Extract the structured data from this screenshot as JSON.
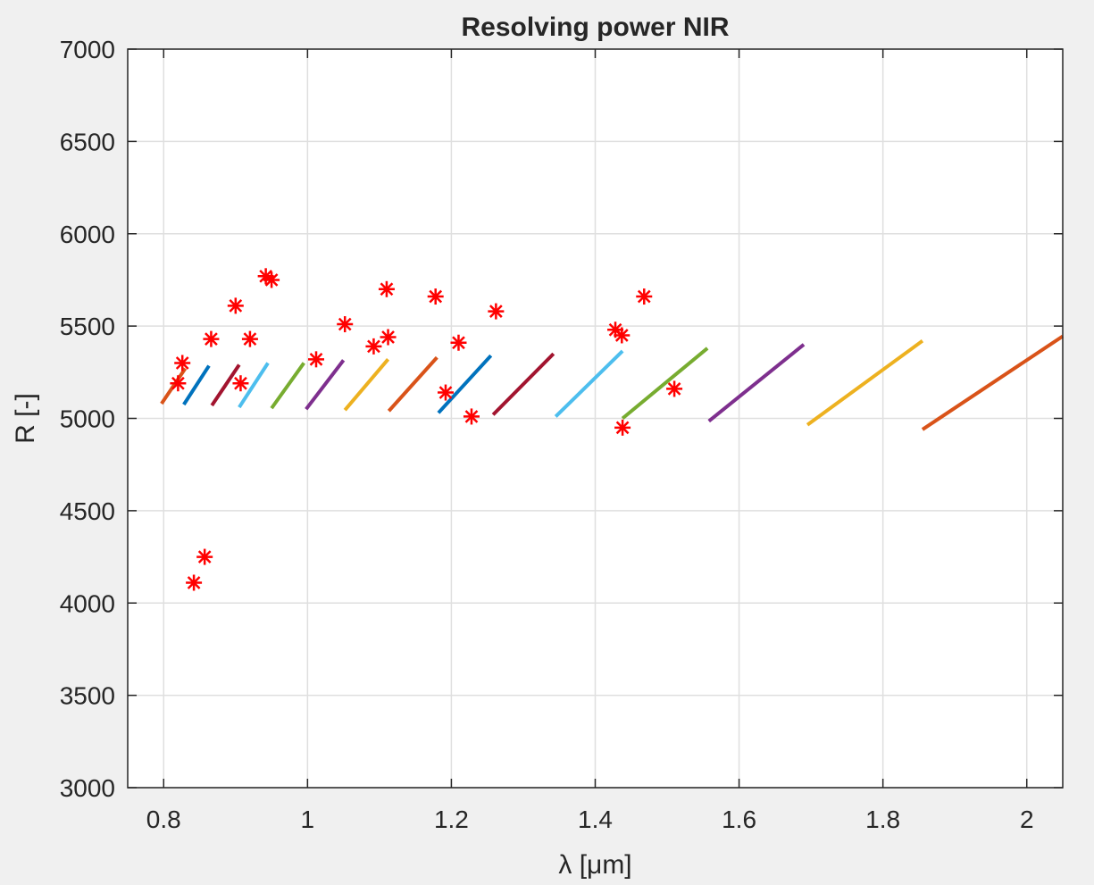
{
  "chart_data": {
    "type": "line",
    "title": "Resolving power NIR",
    "xlabel": "λ [μm]",
    "ylabel": "R [-]",
    "xlim": [
      0.75,
      2.05
    ],
    "ylim": [
      3000,
      7000
    ],
    "xticks": [
      0.8,
      1,
      1.2,
      1.4,
      1.6,
      1.8,
      2
    ],
    "xtick_labels": [
      "0.8",
      "1",
      "1.2",
      "1.4",
      "1.6",
      "1.8",
      "2"
    ],
    "yticks": [
      3000,
      3500,
      4000,
      4500,
      5000,
      5500,
      6000,
      6500,
      7000
    ],
    "ytick_labels": [
      "3000",
      "3500",
      "4000",
      "4500",
      "5000",
      "5500",
      "6000",
      "6500",
      "7000"
    ],
    "grid": true,
    "background": "#ffffff",
    "lines": [
      {
        "x": [
          0.797,
          0.83
        ],
        "y": [
          5080,
          5270
        ],
        "color": "#d95319"
      },
      {
        "x": [
          0.828,
          0.863
        ],
        "y": [
          5075,
          5285
        ],
        "color": "#0072bd"
      },
      {
        "x": [
          0.867,
          0.905
        ],
        "y": [
          5070,
          5290
        ],
        "color": "#a2142f"
      },
      {
        "x": [
          0.905,
          0.945
        ],
        "y": [
          5060,
          5300
        ],
        "color": "#4dbeee"
      },
      {
        "x": [
          0.95,
          0.995
        ],
        "y": [
          5055,
          5300
        ],
        "color": "#77ac30"
      },
      {
        "x": [
          0.998,
          1.05
        ],
        "y": [
          5050,
          5315
        ],
        "color": "#7e2f8e"
      },
      {
        "x": [
          1.052,
          1.112
        ],
        "y": [
          5045,
          5320
        ],
        "color": "#edb120"
      },
      {
        "x": [
          1.113,
          1.18
        ],
        "y": [
          5040,
          5330
        ],
        "color": "#d95319"
      },
      {
        "x": [
          1.182,
          1.255
        ],
        "y": [
          5030,
          5340
        ],
        "color": "#0072bd"
      },
      {
        "x": [
          1.258,
          1.342
        ],
        "y": [
          5020,
          5350
        ],
        "color": "#a2142f"
      },
      {
        "x": [
          1.345,
          1.438
        ],
        "y": [
          5010,
          5365
        ],
        "color": "#4dbeee"
      },
      {
        "x": [
          1.438,
          1.556
        ],
        "y": [
          5000,
          5380
        ],
        "color": "#77ac30"
      },
      {
        "x": [
          1.558,
          1.69
        ],
        "y": [
          4985,
          5400
        ],
        "color": "#7e2f8e"
      },
      {
        "x": [
          1.695,
          1.855
        ],
        "y": [
          4965,
          5420
        ],
        "color": "#edb120"
      },
      {
        "x": [
          1.855,
          2.05
        ],
        "y": [
          4940,
          5445
        ],
        "color": "#d95319"
      }
    ],
    "markers": {
      "color": "#ff0000",
      "symbol": "asterisk",
      "x": [
        0.82,
        0.826,
        0.842,
        0.857,
        0.866,
        0.9,
        0.907,
        0.92,
        0.942,
        0.95,
        1.012,
        1.052,
        1.092,
        1.11,
        1.112,
        1.178,
        1.192,
        1.21,
        1.228,
        1.262,
        1.428,
        1.437,
        1.438,
        1.468,
        1.51
      ],
      "y": [
        5190,
        5300,
        4110,
        4250,
        5430,
        5610,
        5190,
        5430,
        5770,
        5750,
        5320,
        5510,
        5390,
        5700,
        5440,
        5660,
        5140,
        5410,
        5010,
        5580,
        5480,
        5450,
        4950,
        5660,
        5160
      ]
    }
  }
}
